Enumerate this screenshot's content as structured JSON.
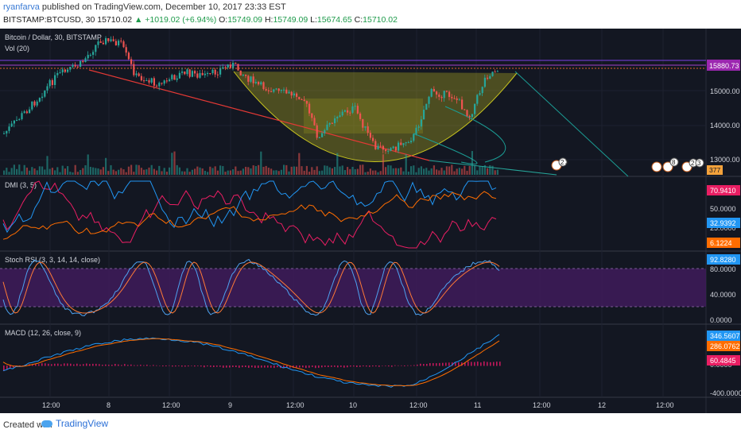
{
  "header": {
    "username": "ryanfarva",
    "published": "published on TradingView.com, December 10, 2017 23:33 EST",
    "symbol": "BITSTAMP:BTCUSD, 30",
    "last": "15710.02",
    "change": "+1019.02 (+6.94%)",
    "open_label": "O:",
    "open": "15749.09",
    "high_label": "H:",
    "high": "15749.09",
    "low_label": "L:",
    "low": "15674.65",
    "close_label": "C:",
    "close": "15710.02"
  },
  "main_pane": {
    "legend_title": "Bitcoin / Dollar, 30, BITSTAMP",
    "legend_volume": "Vol (20)",
    "price_tag": "15880.73",
    "volume_tag": "377",
    "price_axis_ticks": [
      "15000.00",
      "14000.00",
      "13000.00"
    ],
    "event_badges": [
      "2",
      "3",
      "3",
      "8",
      "2",
      "3"
    ]
  },
  "dmi_pane": {
    "label": "DMI (3, 5)",
    "axis_ticks": [
      "50.0000",
      "25.0000"
    ],
    "tags": [
      "70.9410",
      "32.9392",
      "6.1224"
    ]
  },
  "stoch_pane": {
    "label": "Stoch RSI (3, 3, 14, 14, close)",
    "axis_ticks": [
      "80.0000",
      "40.0000",
      "0.0000"
    ],
    "tags": [
      "92.8280"
    ]
  },
  "macd_pane": {
    "label": "MACD (12, 26, close, 9)",
    "axis_ticks": [
      "0.0000",
      "-400.0000"
    ],
    "tags": [
      "346.5607",
      "286.0762",
      "60.4845"
    ]
  },
  "time_axis": [
    "12:00",
    "8",
    "12:00",
    "9",
    "12:00",
    "10",
    "12:00",
    "11",
    "12:00",
    "12",
    "12:00"
  ],
  "footer": {
    "created_with": "Created with",
    "brand": "TradingView"
  },
  "colors": {
    "background": "#131722",
    "up_candle": "#26a69a",
    "down_candle": "#ef5350",
    "price_tag": "#9c27b0",
    "cup_fill": "#c8c41e",
    "dmi_plus": "#2196f3",
    "dmi_minus": "#e91e63",
    "adx": "#ff6d00",
    "stoch_band": "#3f1b5a"
  }
}
